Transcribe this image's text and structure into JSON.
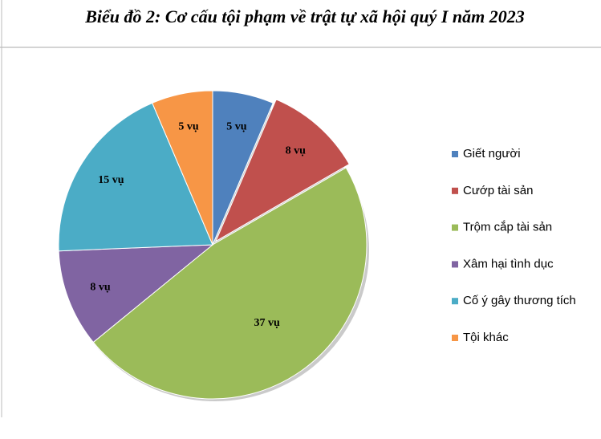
{
  "chart_data": {
    "type": "pie",
    "title": "Biểu đồ 2: Cơ cấu tội phạm về trật tự xã hội quý I năm 2023",
    "categories": [
      "Giết  người",
      "Cướp  tài sản",
      "Trộm cắp tài sản",
      "Xâm hại tình dục",
      "Cố ý gây thương  tích",
      "Tội khác"
    ],
    "values": [
      5,
      8,
      37,
      8,
      15,
      5
    ],
    "value_labels": [
      "5 vụ",
      "8 vụ",
      "37 vụ",
      "8 vụ",
      "15 vụ",
      "5 vụ"
    ],
    "colors": [
      "#4f81bd",
      "#c0504d",
      "#9bbb59",
      "#8064a2",
      "#4bacc6",
      "#f79646"
    ],
    "legend": "right"
  }
}
